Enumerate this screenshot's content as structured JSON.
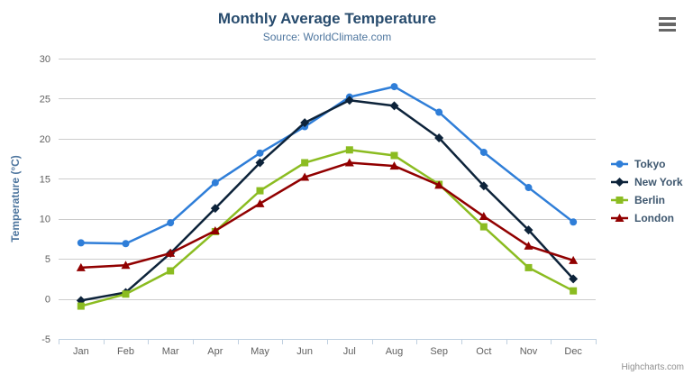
{
  "header": {
    "title": "Monthly Average Temperature",
    "subtitle": "Source: WorldClimate.com"
  },
  "icons": {
    "context_menu": "hamburger-menu"
  },
  "credits_label": "Highcharts.com",
  "chart_data": {
    "type": "line",
    "title": "Monthly Average Temperature",
    "subtitle": "Source: WorldClimate.com",
    "xlabel": "",
    "ylabel": "Temperature (°C)",
    "categories": [
      "Jan",
      "Feb",
      "Mar",
      "Apr",
      "May",
      "Jun",
      "Jul",
      "Aug",
      "Sep",
      "Oct",
      "Nov",
      "Dec"
    ],
    "series": [
      {
        "name": "Tokyo",
        "color": "#2f7ed8",
        "marker": "circle",
        "values": [
          7.0,
          6.9,
          9.5,
          14.5,
          18.2,
          21.5,
          25.2,
          26.5,
          23.3,
          18.3,
          13.9,
          9.6
        ]
      },
      {
        "name": "New York",
        "color": "#0d233a",
        "marker": "diamond",
        "values": [
          -0.2,
          0.8,
          5.7,
          11.3,
          17.0,
          22.0,
          24.8,
          24.1,
          20.1,
          14.1,
          8.6,
          2.5
        ]
      },
      {
        "name": "Berlin",
        "color": "#8bbc21",
        "marker": "square",
        "values": [
          -0.9,
          0.6,
          3.5,
          8.4,
          13.5,
          17.0,
          18.6,
          17.9,
          14.3,
          9.0,
          3.9,
          1.0
        ]
      },
      {
        "name": "London",
        "color": "#910000",
        "marker": "triangle",
        "values": [
          3.9,
          4.2,
          5.7,
          8.5,
          11.9,
          15.2,
          17.0,
          16.6,
          14.2,
          10.3,
          6.6,
          4.8
        ]
      }
    ],
    "ylim": [
      -5,
      30
    ],
    "y_ticks": [
      -5,
      0,
      5,
      10,
      15,
      20,
      25,
      30
    ],
    "grid": true,
    "legend_position": "right"
  },
  "style_colors": {
    "grid_line": "#cccccc",
    "axis_line": "#c0d0e0",
    "tick_label": "#606060",
    "axis_title": "#4d759e"
  }
}
